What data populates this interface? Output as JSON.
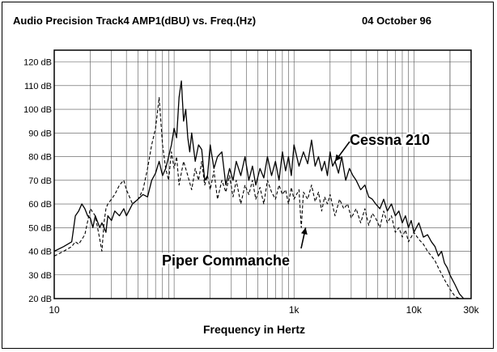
{
  "header": {
    "title": "Audio Precision Track4 AMP1(dBU) vs. Freq.(Hz)",
    "date": "04 October 96"
  },
  "chart_data": {
    "type": "line",
    "title": "Audio Precision Track4 AMP1(dBU) vs. Freq.(Hz)",
    "xlabel": "Frequency in Hertz",
    "ylabel": "",
    "x_scale": "log",
    "xlim": [
      10,
      30000
    ],
    "ylim": [
      20,
      125
    ],
    "grid": true,
    "x_ticks": [
      {
        "value": 10,
        "label": "10"
      },
      {
        "value": 1000,
        "label": "1k"
      },
      {
        "value": 10000,
        "label": "10k"
      },
      {
        "value": 30000,
        "label": "30k"
      }
    ],
    "y_ticks": [
      {
        "value": 20,
        "label": "20 dB"
      },
      {
        "value": 30,
        "label": "30 dB"
      },
      {
        "value": 40,
        "label": "40 dB"
      },
      {
        "value": 50,
        "label": "50 dB"
      },
      {
        "value": 60,
        "label": "60 dB"
      },
      {
        "value": 70,
        "label": "70 dB"
      },
      {
        "value": 80,
        "label": "80 dB"
      },
      {
        "value": 90,
        "label": "90 dB"
      },
      {
        "value": 100,
        "label": "100 dB"
      },
      {
        "value": 110,
        "label": "110 dB"
      },
      {
        "value": 120,
        "label": "120 dB"
      }
    ],
    "annotations": [
      {
        "text": "Cessna 210",
        "series": "Cessna 210",
        "points_to": [
          2200,
          78
        ]
      },
      {
        "text": "Piper Commanche",
        "series": "Piper Commanche",
        "points_to": [
          1250,
          50
        ]
      }
    ],
    "series": [
      {
        "name": "Cessna 210",
        "style": "solid",
        "x": [
          10,
          12,
          14,
          15,
          16,
          17,
          18,
          19,
          20,
          21,
          22,
          24,
          25,
          27,
          28,
          30,
          32,
          35,
          38,
          40,
          45,
          50,
          55,
          60,
          65,
          70,
          75,
          80,
          85,
          90,
          95,
          100,
          105,
          110,
          115,
          120,
          125,
          130,
          135,
          140,
          150,
          160,
          170,
          180,
          190,
          200,
          215,
          230,
          250,
          270,
          290,
          310,
          330,
          360,
          390,
          420,
          450,
          480,
          520,
          560,
          600,
          650,
          700,
          750,
          800,
          850,
          900,
          950,
          1000,
          1100,
          1200,
          1300,
          1400,
          1500,
          1600,
          1700,
          1800,
          1900,
          2000,
          2100,
          2200,
          2350,
          2500,
          2700,
          2900,
          3100,
          3300,
          3600,
          3900,
          4200,
          4500,
          4800,
          5200,
          5600,
          6000,
          6500,
          7000,
          7500,
          8000,
          8500,
          9000,
          9500,
          10000,
          11000,
          12000,
          13000,
          14000,
          15000,
          16000,
          17000,
          18000,
          19000,
          20000,
          22000,
          24000,
          26000
        ],
        "values": [
          40,
          42,
          44,
          55,
          57,
          60,
          58,
          55,
          54,
          50,
          55,
          50,
          52,
          48,
          55,
          53,
          57,
          55,
          58,
          55,
          60,
          62,
          64,
          63,
          70,
          73,
          78,
          72,
          75,
          80,
          85,
          92,
          88,
          105,
          112,
          95,
          100,
          88,
          82,
          90,
          78,
          85,
          83,
          70,
          72,
          85,
          75,
          80,
          82,
          68,
          75,
          70,
          78,
          72,
          80,
          70,
          76,
          68,
          75,
          71,
          80,
          72,
          78,
          70,
          82,
          74,
          80,
          72,
          85,
          76,
          82,
          77,
          87,
          76,
          80,
          74,
          78,
          72,
          82,
          76,
          78,
          73,
          80,
          70,
          75,
          72,
          70,
          66,
          68,
          63,
          62,
          60,
          58,
          62,
          57,
          60,
          55,
          57,
          52,
          55,
          50,
          53,
          48,
          52,
          46,
          47,
          44,
          42,
          38,
          40,
          35,
          33,
          30,
          26,
          22,
          20
        ]
      },
      {
        "name": "Piper Commanche",
        "style": "dashed",
        "x": [
          10,
          12,
          14,
          15,
          16,
          18,
          20,
          22,
          24,
          25,
          26,
          27,
          28,
          30,
          32,
          35,
          38,
          40,
          45,
          50,
          55,
          60,
          65,
          70,
          75,
          80,
          85,
          90,
          95,
          100,
          105,
          110,
          120,
          130,
          140,
          150,
          160,
          170,
          180,
          190,
          200,
          215,
          230,
          250,
          270,
          290,
          310,
          330,
          360,
          390,
          420,
          450,
          480,
          520,
          560,
          600,
          650,
          700,
          750,
          800,
          850,
          900,
          950,
          1000,
          1100,
          1150,
          1200,
          1300,
          1400,
          1500,
          1600,
          1700,
          1800,
          1900,
          2000,
          2200,
          2400,
          2600,
          2800,
          3000,
          3300,
          3600,
          3900,
          4200,
          4500,
          4800,
          5200,
          5600,
          6000,
          6500,
          7000,
          7500,
          8000,
          8500,
          9000,
          9500,
          10000,
          11000,
          12000,
          13000,
          14000,
          15000,
          16000,
          18000,
          20000,
          22000,
          24000,
          26000
        ],
        "values": [
          38,
          40,
          42,
          44,
          43,
          47,
          58,
          55,
          45,
          40,
          52,
          58,
          60,
          62,
          64,
          68,
          70,
          66,
          60,
          62,
          66,
          75,
          85,
          92,
          105,
          85,
          75,
          70,
          82,
          75,
          80,
          68,
          78,
          72,
          66,
          75,
          70,
          78,
          68,
          72,
          66,
          74,
          62,
          70,
          65,
          72,
          63,
          70,
          60,
          68,
          64,
          70,
          62,
          67,
          60,
          70,
          65,
          62,
          68,
          64,
          66,
          60,
          67,
          62,
          66,
          50,
          65,
          62,
          68,
          61,
          65,
          57,
          63,
          60,
          64,
          55,
          62,
          58,
          60,
          54,
          58,
          52,
          58,
          51,
          56,
          54,
          50,
          57,
          52,
          55,
          48,
          50,
          46,
          49,
          44,
          46,
          48,
          45,
          43,
          40,
          38,
          36,
          33,
          28,
          24,
          21,
          20,
          20
        ]
      }
    ]
  }
}
